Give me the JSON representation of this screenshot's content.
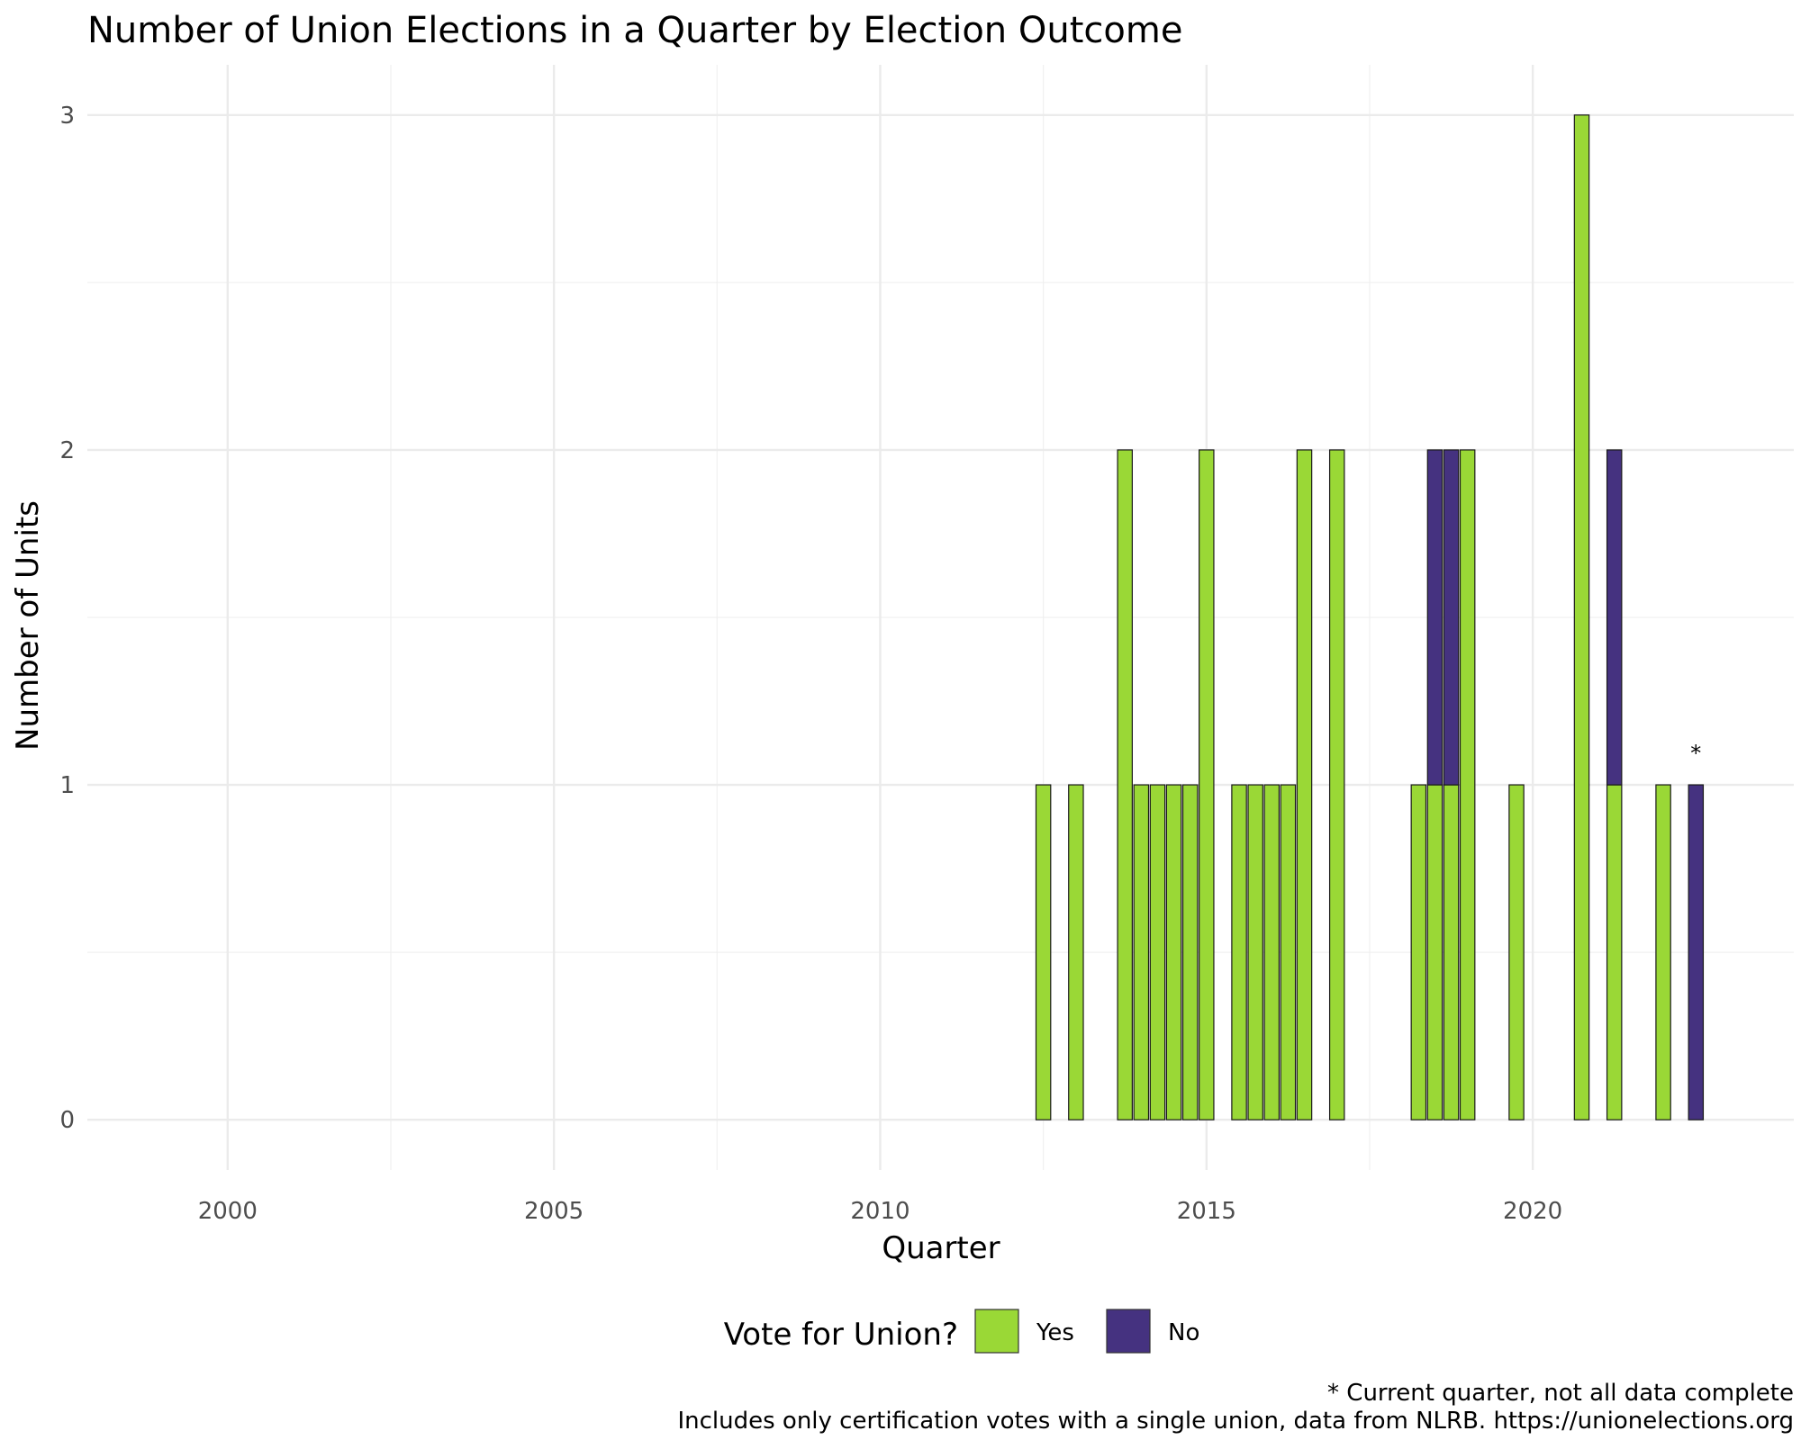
{
  "chart_data": {
    "type": "bar",
    "stacked": true,
    "title": "Number of Union Elections in a Quarter by Election Outcome",
    "xlabel": "Quarter",
    "ylabel": "Number of Units",
    "xlim": [
      1997.85,
      2024.0
    ],
    "ylim": [
      -0.15,
      3.15
    ],
    "x_ticks": [
      2000,
      2005,
      2010,
      2015,
      2020
    ],
    "y_ticks": [
      0,
      1,
      2,
      3
    ],
    "grid": true,
    "legend": {
      "title": "Vote for Union?",
      "position": "bottom",
      "entries": [
        {
          "label": "Yes",
          "color": "#9ad836"
        },
        {
          "label": "No",
          "color": "#453280"
        }
      ]
    },
    "series": [
      {
        "name": "Yes",
        "color": "#9ad836",
        "x": [
          2012.5,
          2013.0,
          2013.75,
          2014.0,
          2014.25,
          2014.5,
          2014.75,
          2015.0,
          2015.5,
          2015.75,
          2016.0,
          2016.25,
          2016.5,
          2017.0,
          2018.25,
          2018.5,
          2018.75,
          2019.0,
          2019.75,
          2020.75,
          2021.25,
          2022.0
        ],
        "values": [
          1,
          1,
          2,
          1,
          1,
          1,
          1,
          2,
          1,
          1,
          1,
          1,
          2,
          2,
          1,
          1,
          1,
          2,
          1,
          3,
          1,
          1
        ]
      },
      {
        "name": "No",
        "color": "#453280",
        "x": [
          2018.5,
          2018.75,
          2021.25,
          2022.5
        ],
        "values": [
          1,
          1,
          1,
          1
        ]
      }
    ],
    "annotations": [
      {
        "text": "*",
        "x": 2022.5,
        "y": 1.1
      }
    ]
  },
  "captions": {
    "line1": "* Current quarter, not all data complete",
    "line2": "Includes only certification votes with a single union, data from NLRB. https://unionelections.org"
  }
}
